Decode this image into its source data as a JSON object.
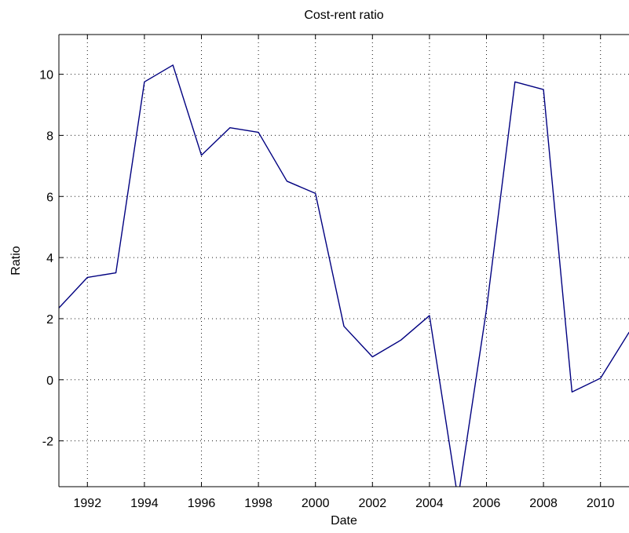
{
  "chart_data": {
    "type": "line",
    "title": "Cost-rent ratio",
    "xlabel": "Date",
    "ylabel": "Ratio",
    "xlim": [
      1991,
      2011
    ],
    "ylim": [
      -3.5,
      11.3
    ],
    "x_ticks": [
      1992,
      1994,
      1996,
      1998,
      2000,
      2002,
      2004,
      2006,
      2008,
      2010
    ],
    "y_ticks": [
      -2,
      0,
      2,
      4,
      6,
      8,
      10
    ],
    "grid": true,
    "series": [
      {
        "color": "#000080",
        "x": [
          1991,
          1992,
          1993,
          1994,
          1995,
          1996,
          1997,
          1998,
          1999,
          2000,
          2001,
          2002,
          2003,
          2004,
          2005,
          2006,
          2007,
          2008,
          2009,
          2010,
          2011
        ],
        "y": [
          2.35,
          3.35,
          3.5,
          9.75,
          10.3,
          7.35,
          8.25,
          8.1,
          6.5,
          6.1,
          1.75,
          0.75,
          1.3,
          2.1,
          -3.9,
          2.3,
          9.75,
          9.5,
          -0.4,
          0.05,
          1.55
        ]
      }
    ]
  },
  "colors": {
    "line": "#000080",
    "grid": "#000000",
    "axes": "#000000",
    "background": "#ffffff"
  }
}
